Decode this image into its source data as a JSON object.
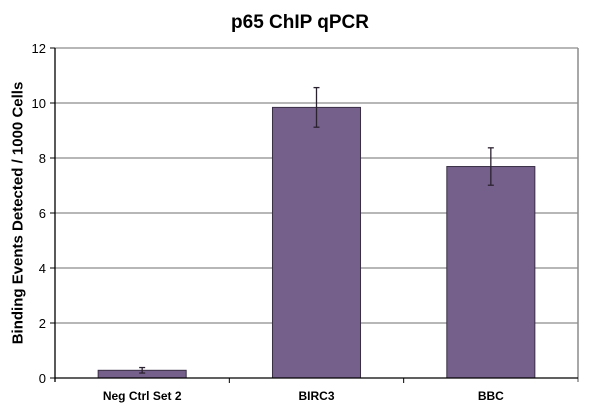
{
  "chart_data": {
    "type": "bar",
    "title": "p65 ChIP qPCR",
    "xlabel": "",
    "ylabel": "Binding Events Detected / 1000 Cells",
    "categories": [
      "Neg Ctrl Set 2",
      "BIRC3",
      "BBC"
    ],
    "values": [
      0.28,
      9.84,
      7.69
    ],
    "error": [
      0.1,
      0.72,
      0.68
    ],
    "ylim": [
      0,
      12
    ],
    "yticks": [
      0,
      2,
      4,
      6,
      8,
      10,
      12
    ],
    "grid": true,
    "legend": null,
    "bar_color": "#74608a"
  }
}
